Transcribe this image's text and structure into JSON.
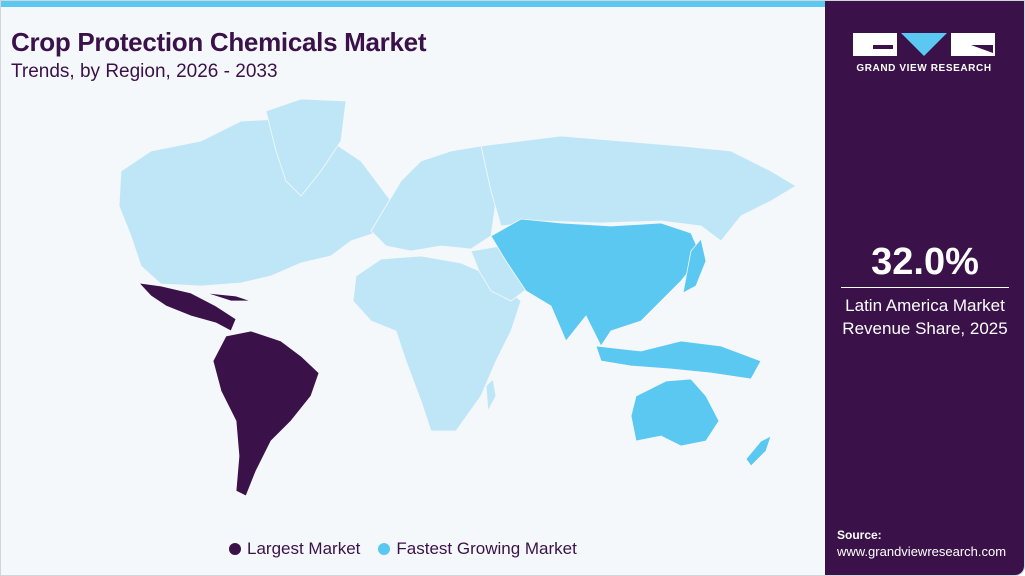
{
  "header": {
    "title": "Crop Protection Chemicals Market",
    "subtitle": "Trends, by Region, 2026 - 2033"
  },
  "brand": {
    "name": "GRAND VIEW RESEARCH"
  },
  "stat": {
    "value": "32.0%",
    "label_line1": "Latin America Market",
    "label_line2": "Revenue Share, 2025"
  },
  "legend": [
    {
      "label": "Largest Market",
      "color": "#3a1249"
    },
    {
      "label": "Fastest Growing Market",
      "color": "#5bc8f2"
    }
  ],
  "source": {
    "heading": "Source:",
    "url": "www.grandviewresearch.com"
  },
  "colors": {
    "base_region": "#bfe6f7",
    "largest": "#3a1249",
    "fastest": "#5bc8f2",
    "panel": "#3a1249"
  },
  "map": {
    "largest_market_region": "Latin America",
    "fastest_growing_region": "Asia Pacific"
  }
}
